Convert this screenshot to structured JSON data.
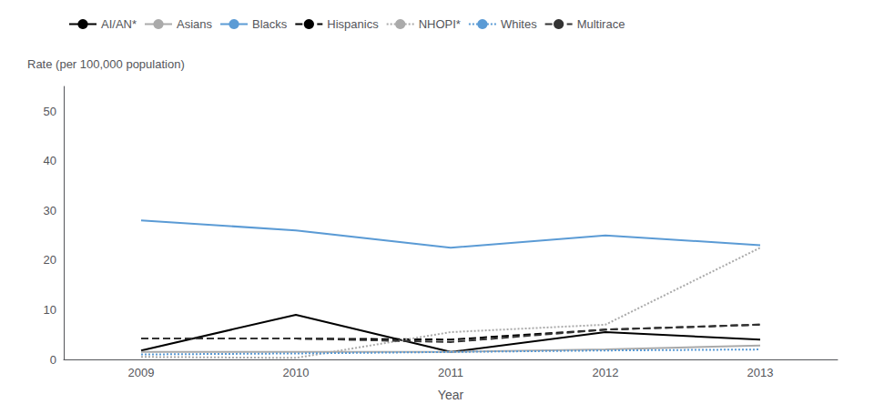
{
  "chart_data": {
    "type": "line",
    "categories": [
      "2009",
      "2010",
      "2011",
      "2012",
      "2013"
    ],
    "series": [
      {
        "name": "AI/AN*",
        "color": "#000000",
        "line_style": "solid",
        "values": [
          1.8,
          9.0,
          1.5,
          5.5,
          4.0
        ]
      },
      {
        "name": "Asians",
        "color": "#aaaaaa",
        "line_style": "solid",
        "values": [
          1.5,
          1.5,
          1.5,
          2.0,
          2.8
        ]
      },
      {
        "name": "Blacks",
        "color": "#5b9bd5",
        "line_style": "solid",
        "values": [
          28.0,
          26.0,
          22.5,
          25.0,
          23.0
        ]
      },
      {
        "name": "Hispanics",
        "color": "#000000",
        "line_style": "dashed",
        "values": [
          4.2,
          4.2,
          4.0,
          6.0,
          7.0
        ]
      },
      {
        "name": "NHOPI*",
        "color": "#aaaaaa",
        "line_style": "dotted",
        "values": [
          0.5,
          0.3,
          5.5,
          7.0,
          22.5
        ]
      },
      {
        "name": "Whites",
        "color": "#5b9bd5",
        "line_style": "dotted",
        "values": [
          1.0,
          1.2,
          1.5,
          1.8,
          2.0
        ]
      },
      {
        "name": "Multirace",
        "color": "#333333",
        "line_style": "dashed",
        "values": [
          4.2,
          4.2,
          3.5,
          6.0,
          7.0
        ]
      }
    ],
    "xlabel": "Year",
    "ylabel": "Rate (per 100,000 population)",
    "ylim": [
      0,
      55
    ],
    "yticks": [
      0,
      10,
      20,
      30,
      40,
      50
    ],
    "grid": false,
    "legend": "upper left"
  }
}
